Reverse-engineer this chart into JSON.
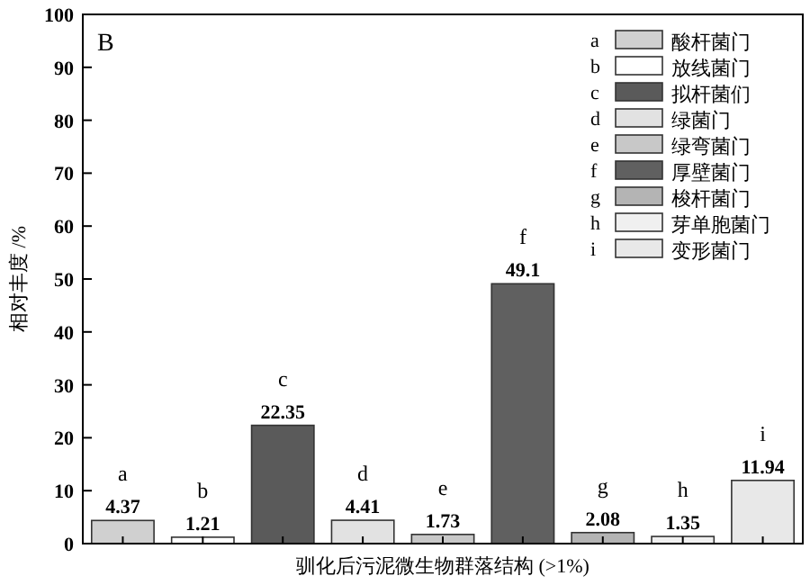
{
  "chart_data": {
    "type": "bar",
    "title": "B",
    "ylabel": "相对丰度 /%",
    "xlabel": "驯化后污泥微生物群落结构 (>1%)",
    "categories": [
      "a",
      "b",
      "c",
      "d",
      "e",
      "f",
      "g",
      "h",
      "i"
    ],
    "series": [
      {
        "name": "酸杆菌门",
        "color": "#d0d0d0",
        "values": [
          4.37,
          null,
          null,
          null,
          null,
          null,
          null,
          null,
          null
        ]
      },
      {
        "name": "放线菌门",
        "color": "#ffffff",
        "values": [
          null,
          1.21,
          null,
          null,
          null,
          null,
          null,
          null,
          null
        ]
      },
      {
        "name": "拟杆菌们",
        "color": "#5a5a5a",
        "values": [
          null,
          null,
          22.35,
          null,
          null,
          null,
          null,
          null,
          null
        ]
      },
      {
        "name": "绿菌门",
        "color": "#e2e2e2",
        "values": [
          null,
          null,
          null,
          4.41,
          null,
          null,
          null,
          null,
          null
        ]
      },
      {
        "name": "绿弯菌门",
        "color": "#c8c8c8",
        "values": [
          null,
          null,
          null,
          null,
          1.73,
          null,
          null,
          null,
          null
        ]
      },
      {
        "name": "厚壁菌门",
        "color": "#606060",
        "values": [
          null,
          null,
          null,
          null,
          null,
          49.1,
          null,
          null,
          null
        ]
      },
      {
        "name": "梭杆菌门",
        "color": "#b4b4b4",
        "values": [
          null,
          null,
          null,
          null,
          null,
          null,
          2.08,
          null,
          null
        ]
      },
      {
        "name": "芽单胞菌门",
        "color": "#f0f0f0",
        "values": [
          null,
          null,
          null,
          null,
          null,
          null,
          null,
          1.35,
          null
        ]
      },
      {
        "name": "变形菌门",
        "color": "#e8e8e8",
        "values": [
          null,
          null,
          null,
          null,
          null,
          null,
          null,
          null,
          11.94
        ]
      }
    ],
    "ylim": [
      0,
      100
    ],
    "yticks": [
      0,
      10,
      20,
      30,
      40,
      50,
      60,
      70,
      80,
      90,
      100
    ],
    "data_labels": true,
    "legend": "top right",
    "grid": false
  }
}
